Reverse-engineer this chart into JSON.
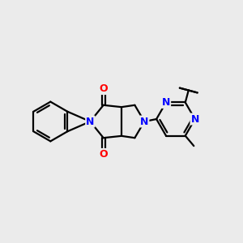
{
  "bg_color": "#ebebeb",
  "bond_color": "#000000",
  "N_color": "#0000ff",
  "O_color": "#ff0000",
  "line_width": 1.6,
  "figsize": [
    3.0,
    3.0
  ],
  "dpi": 100,
  "xlim": [
    0,
    10
  ],
  "ylim": [
    0,
    10
  ]
}
